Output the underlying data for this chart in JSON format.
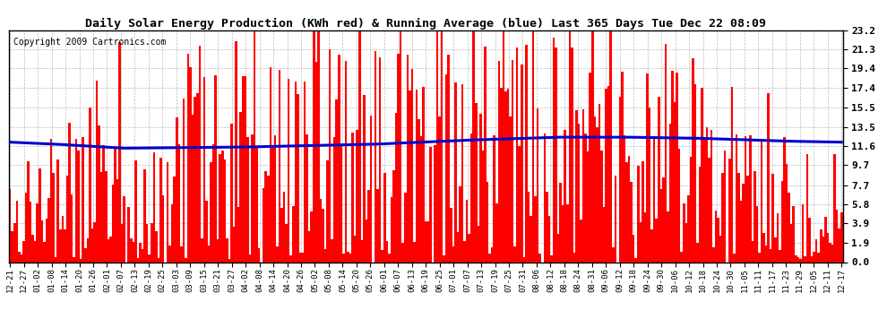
{
  "title": "Daily Solar Energy Production (KWh red) & Running Average (blue) Last 365 Days Tue Dec 22 08:09",
  "copyright": "Copyright 2009 Cartronics.com",
  "bar_color": "#ff0000",
  "avg_color": "#0000cd",
  "background_color": "#ffffff",
  "plot_bg_color": "#ffffff",
  "grid_color": "#aaaaaa",
  "yticks": [
    0.0,
    1.9,
    3.9,
    5.8,
    7.7,
    9.7,
    11.6,
    13.5,
    15.5,
    17.4,
    19.4,
    21.3,
    23.2
  ],
  "ymax": 23.2,
  "avg_profile_x": [
    0,
    20,
    50,
    100,
    160,
    200,
    240,
    270,
    300,
    340,
    364
  ],
  "avg_profile_y": [
    12.0,
    11.8,
    11.4,
    11.5,
    11.8,
    12.2,
    12.5,
    12.5,
    12.4,
    12.1,
    12.0
  ],
  "xtick_labels": [
    "12-21",
    "12-27",
    "01-02",
    "01-08",
    "01-14",
    "01-20",
    "01-26",
    "02-01",
    "02-07",
    "02-13",
    "02-19",
    "02-25",
    "03-03",
    "03-09",
    "03-15",
    "03-21",
    "03-27",
    "04-02",
    "04-08",
    "04-14",
    "04-20",
    "04-26",
    "05-02",
    "05-08",
    "05-14",
    "05-20",
    "05-26",
    "06-01",
    "06-07",
    "06-13",
    "06-19",
    "06-25",
    "07-01",
    "07-07",
    "07-13",
    "07-19",
    "07-25",
    "07-31",
    "08-06",
    "08-12",
    "08-18",
    "08-24",
    "08-31",
    "09-06",
    "09-12",
    "09-18",
    "09-24",
    "09-30",
    "10-06",
    "10-12",
    "10-18",
    "10-24",
    "10-30",
    "11-05",
    "11-11",
    "11-17",
    "11-23",
    "11-29",
    "12-05",
    "12-11",
    "12-17"
  ],
  "num_bars": 365,
  "figwidth": 9.9,
  "figheight": 3.75,
  "dpi": 100
}
